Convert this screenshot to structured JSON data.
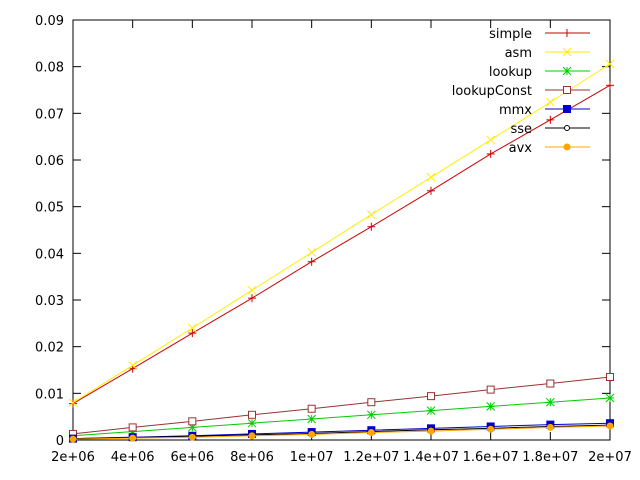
{
  "chart_data": {
    "type": "line",
    "title": "",
    "xlabel": "",
    "ylabel": "",
    "xlim": [
      2000000,
      20000000
    ],
    "ylim": [
      0,
      0.09
    ],
    "x_ticks": [
      {
        "value": 2000000,
        "label": "2e+06"
      },
      {
        "value": 4000000,
        "label": "4e+06"
      },
      {
        "value": 6000000,
        "label": "6e+06"
      },
      {
        "value": 8000000,
        "label": "8e+06"
      },
      {
        "value": 10000000,
        "label": "1e+07"
      },
      {
        "value": 12000000,
        "label": "1.2e+07"
      },
      {
        "value": 14000000,
        "label": "1.4e+07"
      },
      {
        "value": 16000000,
        "label": "1.6e+07"
      },
      {
        "value": 18000000,
        "label": "1.8e+07"
      },
      {
        "value": 20000000,
        "label": "2e+07"
      }
    ],
    "y_ticks": [
      {
        "value": 0,
        "label": "0"
      },
      {
        "value": 0.01,
        "label": "0.01"
      },
      {
        "value": 0.02,
        "label": "0.02"
      },
      {
        "value": 0.03,
        "label": "0.03"
      },
      {
        "value": 0.04,
        "label": "0.04"
      },
      {
        "value": 0.05,
        "label": "0.05"
      },
      {
        "value": 0.06,
        "label": "0.06"
      },
      {
        "value": 0.07,
        "label": "0.07"
      },
      {
        "value": 0.08,
        "label": "0.08"
      },
      {
        "value": 0.09,
        "label": "0.09"
      }
    ],
    "grid": false,
    "legend_position": "top-right",
    "x": [
      2000000,
      4000000,
      6000000,
      8000000,
      10000000,
      12000000,
      14000000,
      16000000,
      18000000,
      20000000
    ],
    "series": [
      {
        "name": "simple",
        "color": "#cc0000",
        "marker": "plus",
        "values": [
          0.0078,
          0.0153,
          0.0229,
          0.0304,
          0.0382,
          0.0457,
          0.0534,
          0.0613,
          0.0686,
          0.076
        ]
      },
      {
        "name": "asm",
        "color": "#ffee00",
        "marker": "cross",
        "values": [
          0.008,
          0.016,
          0.024,
          0.0321,
          0.0402,
          0.0483,
          0.0563,
          0.0643,
          0.0724,
          0.0806
        ]
      },
      {
        "name": "lookup",
        "color": "#00cc00",
        "marker": "star",
        "values": [
          0.0009,
          0.0018,
          0.0027,
          0.0036,
          0.0045,
          0.0054,
          0.0063,
          0.0072,
          0.0081,
          0.009
        ]
      },
      {
        "name": "lookupConst",
        "color": "#993333",
        "marker": "square-open",
        "values": [
          0.0013,
          0.0027,
          0.004,
          0.0054,
          0.0067,
          0.0081,
          0.0094,
          0.0108,
          0.0121,
          0.0135
        ]
      },
      {
        "name": "mmx",
        "color": "#0000cc",
        "marker": "square-filled",
        "values": [
          0.0003,
          0.0006,
          0.0009,
          0.0013,
          0.0017,
          0.0021,
          0.0025,
          0.0029,
          0.0033,
          0.0036
        ]
      },
      {
        "name": "sse",
        "color": "#000000",
        "marker": "circle-open",
        "values": [
          0.0003,
          0.0005,
          0.0008,
          0.0011,
          0.0014,
          0.0018,
          0.0022,
          0.0025,
          0.0029,
          0.0032
        ]
      },
      {
        "name": "avx",
        "color": "#ffa500",
        "marker": "circle-filled",
        "values": [
          0.0002,
          0.0004,
          0.0006,
          0.0009,
          0.0012,
          0.0016,
          0.0019,
          0.0023,
          0.0027,
          0.003
        ]
      }
    ]
  }
}
